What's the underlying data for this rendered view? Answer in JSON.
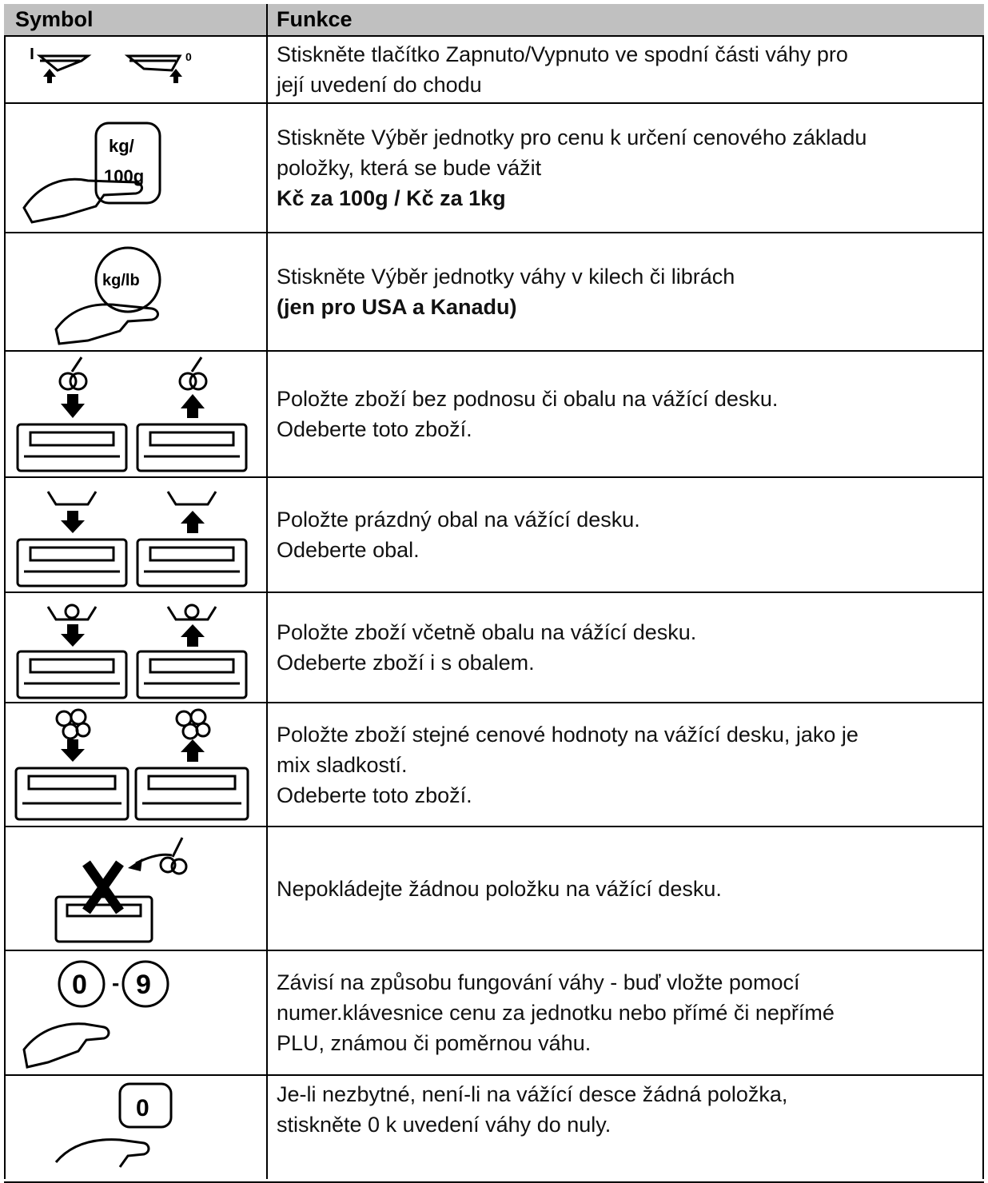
{
  "table": {
    "header": [
      "Symbol",
      "Funkce"
    ],
    "rows": [
      {
        "lines": [
          "Stiskněte tlačítko Zapnuto/Vypnuto ve spodní části váhy pro",
          "její uvedení do chodu"
        ],
        "bold_lines": []
      },
      {
        "lines": [
          "Stiskněte Výběr jednotky pro cenu k určení cenového základu",
          "položky, která se bude vážit"
        ],
        "bold_lines": [
          "Kč za 100g  /  Kč za 1kg"
        ]
      },
      {
        "lines": [
          "Stiskněte Výběr jednotky váhy v kilech či librách"
        ],
        "bold_lines": [
          "(jen pro USA a Kanadu)"
        ]
      },
      {
        "lines": [
          "Položte zboží bez podnosu či obalu na vážící desku.",
          "Odeberte toto zboží."
        ],
        "bold_lines": []
      },
      {
        "lines": [
          "Položte prázdný obal na vážící desku.",
          "Odeberte obal."
        ],
        "bold_lines": []
      },
      {
        "lines": [
          "Položte zboží včetně obalu na vážící desku.",
          "Odeberte zboží i s obalem."
        ],
        "bold_lines": []
      },
      {
        "lines": [
          "Položte zboží stejné cenové hodnoty na vážící desku, jako je",
          "mix sladkostí.",
          "Odeberte toto zboží."
        ],
        "bold_lines": []
      },
      {
        "lines": [
          "Nepokládejte žádnou položku na vážící desku."
        ],
        "bold_lines": []
      },
      {
        "lines": [
          "Závisí na způsobu fungování váhy - buď vložte pomocí",
          "numer.klávesnice cenu za jednotku nebo přímé či nepřímé",
          "PLU, známou či poměrnou váhu."
        ],
        "bold_lines": []
      },
      {
        "lines": [
          "Je-li nezbytné, není-li na vážící desce žádná položka,",
          "stiskněte 0 k uvedení váhy do nuly."
        ],
        "bold_lines": []
      }
    ]
  }
}
